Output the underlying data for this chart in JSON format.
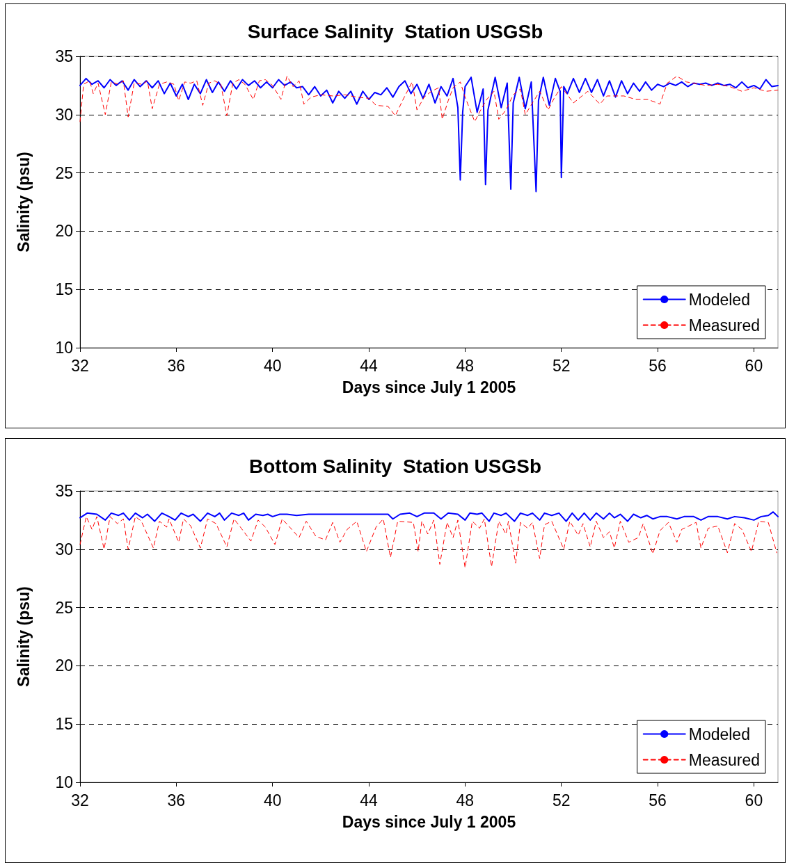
{
  "chart_data": [
    {
      "type": "line",
      "title": "Surface Salinity  Station USGSb",
      "xlabel": "Days since July 1 2005",
      "ylabel": "Salinity (psu)",
      "xlim": [
        32,
        61
      ],
      "xticks": [
        32,
        36,
        40,
        44,
        48,
        52,
        56,
        60
      ],
      "ylim": [
        10,
        35
      ],
      "yticks": [
        10,
        15,
        20,
        25,
        30,
        35
      ],
      "grid": "y",
      "legend": "bottom right",
      "marker": "none",
      "series": [
        {
          "name": "Modeled",
          "color": "#0000ff",
          "line_style": "solid",
          "x": [
            32.0,
            32.25,
            32.5,
            32.75,
            33.0,
            33.25,
            33.5,
            33.75,
            34.0,
            34.25,
            34.5,
            34.75,
            35.0,
            35.25,
            35.5,
            35.75,
            36.0,
            36.25,
            36.5,
            36.75,
            37.0,
            37.25,
            37.5,
            37.75,
            38.0,
            38.25,
            38.5,
            38.75,
            39.0,
            39.25,
            39.5,
            39.75,
            40.0,
            40.25,
            40.5,
            40.75,
            41.0,
            41.25,
            41.5,
            41.75,
            42.0,
            42.25,
            42.5,
            42.75,
            43.0,
            43.25,
            43.5,
            43.75,
            44.0,
            44.25,
            44.5,
            44.75,
            45.0,
            45.25,
            45.5,
            45.75,
            46.0,
            46.25,
            46.5,
            46.75,
            47.0,
            47.25,
            47.5,
            47.7,
            47.8,
            47.9,
            48.0,
            48.25,
            48.5,
            48.75,
            48.85,
            48.95,
            49.25,
            49.5,
            49.75,
            49.9,
            50.0,
            50.25,
            50.5,
            50.75,
            50.95,
            51.05,
            51.25,
            51.5,
            51.75,
            51.95,
            52.0,
            52.1,
            52.25,
            52.5,
            52.75,
            53.0,
            53.25,
            53.5,
            53.75,
            54.0,
            54.25,
            54.5,
            54.75,
            55.0,
            55.25,
            55.5,
            55.75,
            56.0,
            56.25,
            56.5,
            56.75,
            57.0,
            57.25,
            57.5,
            57.75,
            58.0,
            58.25,
            58.5,
            58.75,
            59.0,
            59.25,
            59.5,
            59.75,
            60.0,
            60.25,
            60.5,
            60.75,
            61.0
          ],
          "values": [
            32.5,
            33.1,
            32.6,
            32.9,
            32.3,
            33.0,
            32.5,
            32.9,
            32.1,
            33.0,
            32.4,
            32.9,
            32.3,
            32.9,
            31.8,
            32.7,
            31.6,
            32.6,
            31.3,
            32.6,
            31.8,
            33.0,
            31.9,
            32.8,
            32.0,
            32.9,
            32.2,
            33.0,
            32.5,
            32.9,
            32.3,
            32.8,
            32.3,
            33.0,
            32.5,
            32.8,
            32.3,
            32.4,
            31.7,
            32.4,
            31.6,
            32.1,
            31.0,
            32.0,
            31.4,
            32.0,
            30.9,
            32.0,
            31.3,
            31.9,
            31.7,
            32.3,
            31.5,
            32.4,
            32.9,
            31.8,
            32.6,
            31.4,
            32.6,
            31.0,
            32.4,
            31.6,
            33.1,
            30.6,
            24.4,
            30.2,
            32.4,
            33.2,
            30.2,
            32.2,
            24.0,
            30.4,
            33.2,
            30.6,
            32.7,
            23.6,
            31.0,
            33.2,
            30.5,
            32.8,
            23.4,
            31.2,
            33.2,
            30.8,
            33.1,
            32.0,
            24.6,
            32.4,
            31.8,
            33.1,
            31.9,
            33.1,
            31.9,
            33.0,
            31.6,
            32.9,
            31.5,
            32.9,
            31.8,
            32.7,
            32.0,
            32.8,
            32.1,
            32.6,
            32.4,
            32.7,
            32.5,
            32.8,
            32.4,
            32.7,
            32.6,
            32.7,
            32.5,
            32.7,
            32.5,
            32.6,
            32.3,
            32.8,
            32.3,
            32.5,
            32.2,
            33.0,
            32.4,
            32.5
          ]
        },
        {
          "name": "Measured",
          "color": "#ff0000",
          "line_style": "dashed",
          "x": [
            32.0,
            32.15,
            32.4,
            32.55,
            32.75,
            33.05,
            33.3,
            33.6,
            33.8,
            34.0,
            34.25,
            34.6,
            34.8,
            35.0,
            35.3,
            35.6,
            35.9,
            36.1,
            36.35,
            36.6,
            36.85,
            37.1,
            37.35,
            37.6,
            37.85,
            38.1,
            38.35,
            38.6,
            38.85,
            39.2,
            39.45,
            39.7,
            40.0,
            40.35,
            40.6,
            40.85,
            41.1,
            41.3,
            41.6,
            42.0,
            42.5,
            43.0,
            43.5,
            44.0,
            44.3,
            44.8,
            45.1,
            45.4,
            45.8,
            46.0,
            46.3,
            46.6,
            46.9,
            47.05,
            47.3,
            47.5,
            47.8,
            48.0,
            48.4,
            48.7,
            48.9,
            49.2,
            49.4,
            49.7,
            50.0,
            50.3,
            50.5,
            50.8,
            51.1,
            51.45,
            51.7,
            52.0,
            52.5,
            53.1,
            53.6,
            53.9,
            54.6,
            55.1,
            55.6,
            56.1,
            56.4,
            56.8,
            57.2,
            57.5,
            58.0,
            58.5,
            59.0,
            59.5,
            60.0,
            60.5,
            61.0
          ],
          "values": [
            29.4,
            32.6,
            32.9,
            31.8,
            32.7,
            30.0,
            32.8,
            32.6,
            32.9,
            29.8,
            32.7,
            32.6,
            32.9,
            30.5,
            32.6,
            32.8,
            32.6,
            31.2,
            32.8,
            32.7,
            32.9,
            30.8,
            32.7,
            32.9,
            32.6,
            29.9,
            32.7,
            33.0,
            32.6,
            31.3,
            32.9,
            33.0,
            32.5,
            31.3,
            33.3,
            32.4,
            32.9,
            30.9,
            31.5,
            31.7,
            31.6,
            31.7,
            31.5,
            31.4,
            30.8,
            30.7,
            29.9,
            31.2,
            32.8,
            30.4,
            31.5,
            32.0,
            32.3,
            29.6,
            31.2,
            32.3,
            32.8,
            31.5,
            29.4,
            30.6,
            31.3,
            32.0,
            29.6,
            30.4,
            31.7,
            32.2,
            30.0,
            31.0,
            32.0,
            30.4,
            31.4,
            32.4,
            31.0,
            32.0,
            30.9,
            31.6,
            31.6,
            31.3,
            31.3,
            30.9,
            32.7,
            33.3,
            32.8,
            32.7,
            32.5,
            32.6,
            32.4,
            32.0,
            32.3,
            32.0,
            32.1
          ]
        }
      ]
    },
    {
      "type": "line",
      "title": "Bottom Salinity  Station USGSb",
      "xlabel": "Days since July 1 2005",
      "ylabel": "Salinity (psu)",
      "xlim": [
        32,
        61
      ],
      "xticks": [
        32,
        36,
        40,
        44,
        48,
        52,
        56,
        60
      ],
      "ylim": [
        10,
        35
      ],
      "yticks": [
        10,
        15,
        20,
        25,
        30,
        35
      ],
      "grid": "y",
      "legend": "bottom right",
      "marker": "none",
      "series": [
        {
          "name": "Modeled",
          "color": "#0000ff",
          "line_style": "solid",
          "x": [
            32.0,
            32.3,
            32.7,
            33.05,
            33.3,
            33.6,
            33.8,
            34.05,
            34.3,
            34.6,
            34.8,
            35.1,
            35.4,
            35.7,
            35.95,
            36.2,
            36.5,
            36.7,
            37.0,
            37.3,
            37.6,
            37.8,
            38.0,
            38.3,
            38.6,
            38.8,
            39.0,
            39.3,
            39.6,
            39.8,
            40.0,
            40.3,
            40.6,
            41.0,
            41.5,
            42.0,
            42.5,
            43.0,
            43.5,
            44.0,
            44.5,
            44.8,
            45.0,
            45.3,
            45.7,
            46.0,
            46.3,
            46.7,
            47.0,
            47.3,
            47.7,
            48.0,
            48.2,
            48.5,
            48.7,
            49.0,
            49.2,
            49.5,
            49.7,
            50.05,
            50.3,
            50.6,
            50.8,
            51.1,
            51.3,
            51.6,
            51.9,
            52.2,
            52.45,
            52.7,
            52.95,
            53.2,
            53.45,
            53.75,
            54.0,
            54.2,
            54.45,
            54.75,
            55.0,
            55.3,
            55.55,
            55.8,
            56.1,
            56.4,
            56.8,
            57.1,
            57.5,
            57.8,
            58.1,
            58.5,
            58.9,
            59.2,
            59.6,
            60.0,
            60.3,
            60.6,
            60.8,
            61.0
          ],
          "values": [
            32.7,
            33.1,
            33.0,
            32.5,
            33.1,
            32.9,
            33.1,
            32.5,
            33.1,
            32.7,
            33.0,
            32.4,
            33.1,
            32.8,
            32.5,
            33.1,
            32.8,
            33.0,
            32.4,
            33.1,
            32.8,
            33.1,
            32.5,
            33.1,
            32.9,
            33.1,
            32.5,
            33.0,
            32.9,
            33.0,
            32.8,
            33.0,
            33.0,
            32.9,
            33.0,
            33.0,
            33.0,
            33.0,
            33.0,
            33.0,
            33.0,
            33.0,
            32.6,
            33.0,
            33.1,
            32.8,
            33.1,
            33.1,
            32.6,
            33.1,
            33.0,
            32.5,
            33.1,
            33.0,
            33.1,
            32.4,
            33.1,
            32.9,
            33.1,
            32.4,
            33.1,
            32.9,
            33.1,
            32.5,
            33.1,
            32.9,
            33.1,
            32.4,
            33.1,
            32.5,
            33.1,
            32.5,
            33.1,
            32.6,
            33.1,
            32.7,
            33.0,
            32.4,
            33.0,
            32.7,
            32.9,
            32.6,
            32.8,
            32.8,
            32.6,
            32.8,
            32.8,
            32.5,
            32.8,
            32.8,
            32.6,
            32.8,
            32.7,
            32.5,
            32.8,
            32.9,
            33.2,
            32.8
          ]
        },
        {
          "name": "Measured",
          "color": "#ff0000",
          "line_style": "dashed",
          "x": [
            32.0,
            32.26,
            32.5,
            32.7,
            33.0,
            33.25,
            33.55,
            33.8,
            34.0,
            34.3,
            34.55,
            35.05,
            35.3,
            35.6,
            35.7,
            36.1,
            36.3,
            36.6,
            37.0,
            37.3,
            37.65,
            38.1,
            38.4,
            38.7,
            39.1,
            39.4,
            39.7,
            40.1,
            40.4,
            40.8,
            41.1,
            41.4,
            41.8,
            42.2,
            42.5,
            42.8,
            43.1,
            43.5,
            43.9,
            44.3,
            44.6,
            44.9,
            45.2,
            45.85,
            46.05,
            46.2,
            46.45,
            46.7,
            46.95,
            47.25,
            47.5,
            47.7,
            48.0,
            48.3,
            48.6,
            48.8,
            49.1,
            49.4,
            49.7,
            49.8,
            50.1,
            50.3,
            50.6,
            50.8,
            51.1,
            51.3,
            51.6,
            52.1,
            52.35,
            52.7,
            52.9,
            53.2,
            53.45,
            53.75,
            54.0,
            54.2,
            54.45,
            54.8,
            55.2,
            55.4,
            55.8,
            56.1,
            56.45,
            56.8,
            57.0,
            57.6,
            57.8,
            58.1,
            58.5,
            58.9,
            59.2,
            59.5,
            59.9,
            60.2,
            60.6,
            60.95
          ],
          "values": [
            30.4,
            32.8,
            31.7,
            32.8,
            30.0,
            32.8,
            32.2,
            32.6,
            30.0,
            32.8,
            32.4,
            30.1,
            32.4,
            31.9,
            32.6,
            30.6,
            32.6,
            32.0,
            30.1,
            32.6,
            32.2,
            30.2,
            32.6,
            31.8,
            30.7,
            32.5,
            31.9,
            30.4,
            32.6,
            31.7,
            31.0,
            32.4,
            31.1,
            30.8,
            32.3,
            30.6,
            31.7,
            32.4,
            29.8,
            31.9,
            32.6,
            29.3,
            32.4,
            32.3,
            29.8,
            32.4,
            31.3,
            32.5,
            28.7,
            32.3,
            31.0,
            32.5,
            28.4,
            32.4,
            31.8,
            32.6,
            28.5,
            32.4,
            31.3,
            32.4,
            28.8,
            32.3,
            31.8,
            32.3,
            29.2,
            32.1,
            32.4,
            30.0,
            32.4,
            31.2,
            32.2,
            30.2,
            32.4,
            31.0,
            31.5,
            30.1,
            32.4,
            30.6,
            31.0,
            32.2,
            29.6,
            31.6,
            32.3,
            30.6,
            31.7,
            32.3,
            30.1,
            31.8,
            32.0,
            29.7,
            32.2,
            31.7,
            29.8,
            32.4,
            32.3,
            29.7
          ]
        }
      ]
    }
  ]
}
